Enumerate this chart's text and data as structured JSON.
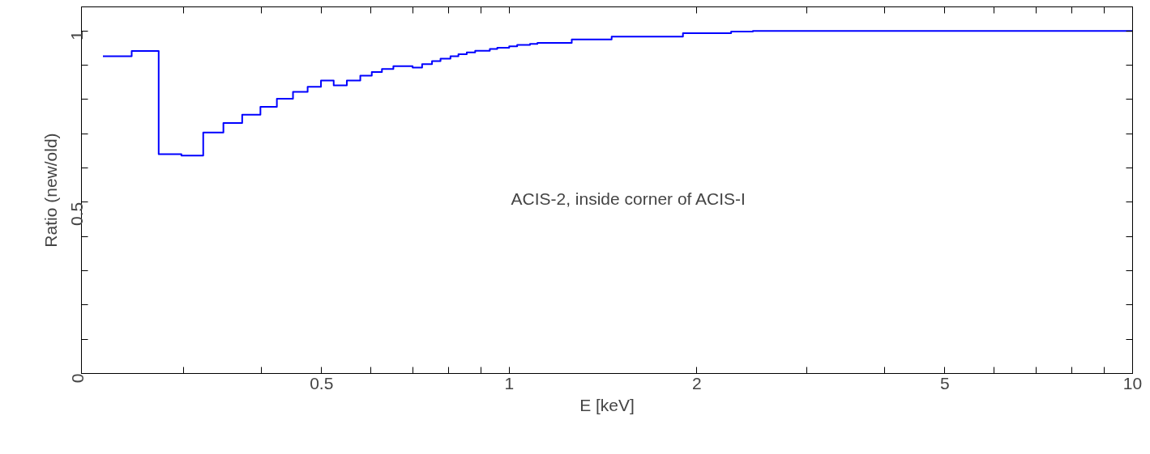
{
  "chart_data": {
    "type": "step",
    "xlabel": "E [keV]",
    "ylabel": "Ratio (new/old)",
    "log": "x",
    "annotations": [
      "ACIS-2, inside corner of ACIS-I"
    ],
    "xlim": [
      0.206,
      10
    ],
    "ylim": [
      0,
      1.07
    ],
    "xticks": [
      {
        "value": 0.3,
        "label": null
      },
      {
        "value": 0.4,
        "label": null
      },
      {
        "value": 0.5,
        "label": "0.5"
      },
      {
        "value": 0.6,
        "label": null
      },
      {
        "value": 0.7,
        "label": null
      },
      {
        "value": 0.8,
        "label": null
      },
      {
        "value": 0.9,
        "label": null
      },
      1,
      2,
      {
        "value": 3,
        "label": null
      },
      {
        "value": 4,
        "label": null
      },
      5,
      {
        "value": 6,
        "label": null
      },
      {
        "value": 7,
        "label": null
      },
      {
        "value": 8,
        "label": null
      },
      {
        "value": 9,
        "label": null
      },
      10
    ],
    "yticks": [
      0,
      {
        "value": 0.1,
        "label": null
      },
      {
        "value": 0.2,
        "label": null
      },
      {
        "value": 0.3,
        "label": null
      },
      {
        "value": 0.4,
        "label": null
      },
      {
        "value": 0.5,
        "label": "0.5"
      },
      {
        "value": 0.6,
        "label": null
      },
      {
        "value": 0.7,
        "label": null
      },
      {
        "value": 0.8,
        "label": null
      },
      {
        "value": 0.9,
        "label": null
      },
      1
    ],
    "series": [
      {
        "color": "#0000ff",
        "x": [
          0.223,
          0.248,
          0.274,
          0.298,
          0.323,
          0.348,
          0.373,
          0.399,
          0.424,
          0.45,
          0.475,
          0.499,
          0.523,
          0.549,
          0.577,
          0.602,
          0.625,
          0.652,
          0.7,
          0.725,
          0.752,
          0.776,
          0.805,
          0.829,
          0.855,
          0.882,
          0.931,
          0.957,
          1.0,
          1.03,
          1.08,
          1.11,
          1.26,
          1.46,
          1.9,
          2.27,
          2.46,
          10
        ],
        "values": [
          0.926,
          0.941,
          0.64,
          0.636,
          0.703,
          0.731,
          0.755,
          0.778,
          0.802,
          0.822,
          0.837,
          0.855,
          0.841,
          0.855,
          0.869,
          0.88,
          0.889,
          0.897,
          0.893,
          0.903,
          0.912,
          0.919,
          0.926,
          0.932,
          0.937,
          0.942,
          0.947,
          0.951,
          0.955,
          0.959,
          0.962,
          0.965,
          0.975,
          0.983,
          0.993,
          0.998,
          1.0,
          1.0
        ]
      }
    ]
  }
}
